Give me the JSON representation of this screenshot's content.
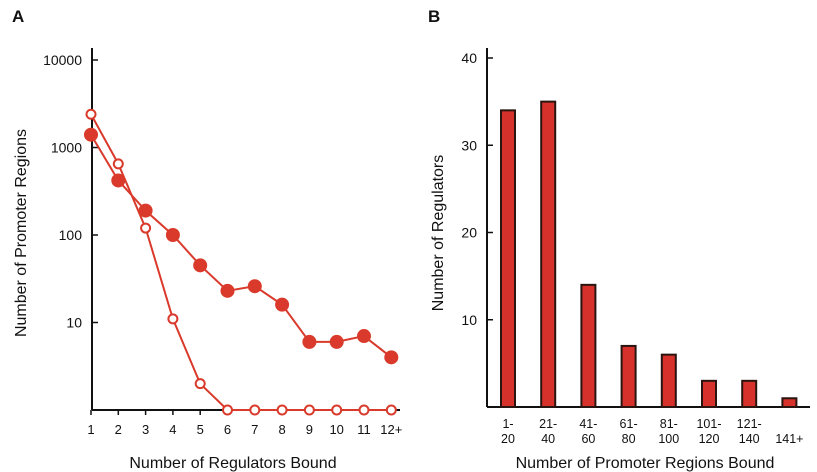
{
  "panels": {
    "a_label": "A",
    "b_label": "B"
  },
  "colors": {
    "accent": "#d93a2b",
    "bar_fill": "#d6312a",
    "bar_stroke": "#2a1410",
    "axis": "#111111"
  },
  "chart_data": [
    {
      "type": "line",
      "panel": "A",
      "xlabel": "Number of Regulators Bound",
      "ylabel": "Number of Promoter Regions",
      "yscale": "log",
      "ylim": [
        1,
        10000
      ],
      "y_ticks": [
        "10000",
        "1000",
        "100",
        "10"
      ],
      "x": [
        "1",
        "2",
        "3",
        "4",
        "5",
        "6",
        "7",
        "8",
        "9",
        "10",
        "11",
        "12+"
      ],
      "series": [
        {
          "marker": "filled",
          "values": [
            1400,
            420,
            190,
            100,
            45,
            23,
            26,
            16,
            6,
            6,
            7,
            4
          ]
        },
        {
          "marker": "open",
          "values": [
            2400,
            650,
            120,
            11,
            2,
            1,
            1,
            1,
            1,
            1,
            1,
            1
          ]
        }
      ],
      "grid": false,
      "legend": "none"
    },
    {
      "type": "bar",
      "panel": "B",
      "xlabel": "Number of Promoter Regions Bound",
      "ylabel": "Number of Regulators",
      "ylim": [
        0,
        40
      ],
      "y_ticks": [
        "40",
        "30",
        "20",
        "10"
      ],
      "categories": [
        {
          "line1": "1-",
          "line2": "20"
        },
        {
          "line1": "21-",
          "line2": "40"
        },
        {
          "line1": "41-",
          "line2": "60"
        },
        {
          "line1": "61-",
          "line2": "80"
        },
        {
          "line1": "81-",
          "line2": "100"
        },
        {
          "line1": "101-",
          "line2": "120"
        },
        {
          "line1": "121-",
          "line2": "140"
        },
        {
          "line1": "141+",
          "line2": ""
        }
      ],
      "values": [
        34,
        35,
        14,
        7,
        6,
        3,
        3,
        1
      ],
      "grid": false,
      "legend": "none"
    }
  ]
}
